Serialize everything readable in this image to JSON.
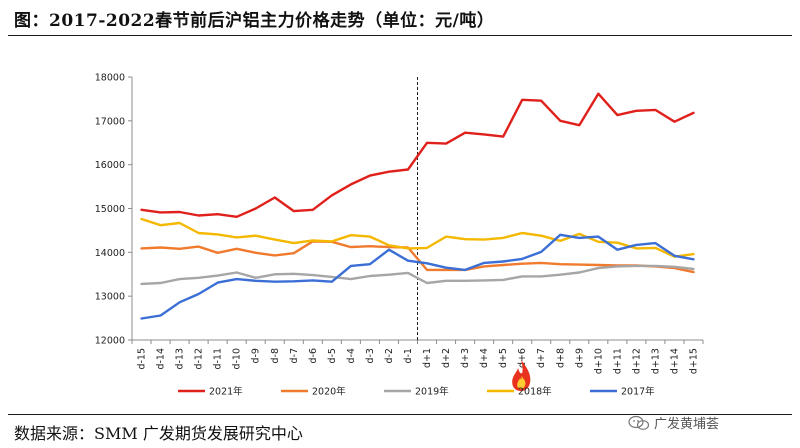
{
  "header": {
    "title": "图：2017-2022春节前后沪铝主力价格走势（单位：元/吨）"
  },
  "footer": {
    "source": "数据来源：SMM 广发期货发展研究中心",
    "watermark": "广发黄埔荟"
  },
  "chart_data": {
    "type": "line",
    "title": "",
    "xlabel": "",
    "ylabel": "",
    "ylim": [
      12000,
      18000
    ],
    "yticks": [
      12000,
      13000,
      14000,
      15000,
      16000,
      17000,
      18000
    ],
    "grid": false,
    "legend_position": "bottom",
    "marker_line_after": "d-1",
    "marker_icon": "flame-icon",
    "marker_icon_at": "d+6",
    "categories": [
      "d-15",
      "d-14",
      "d-13",
      "d-12",
      "d-11",
      "d-10",
      "d-9",
      "d-8",
      "d-7",
      "d-6",
      "d-5",
      "d-4",
      "d-3",
      "d-2",
      "d-1",
      "d+1",
      "d+2",
      "d+3",
      "d+4",
      "d+5",
      "d+6",
      "d+7",
      "d+8",
      "d+9",
      "d+10",
      "d+11",
      "d+12",
      "d+13",
      "d+14",
      "d+15"
    ],
    "series": [
      {
        "name": "2021年",
        "color": "#e0201b",
        "values": [
          14970,
          14910,
          14920,
          14840,
          14870,
          14810,
          15000,
          15250,
          14940,
          14970,
          15300,
          15550,
          15750,
          15840,
          15890,
          16500,
          16480,
          16730,
          16690,
          16640,
          17480,
          17460,
          17000,
          16900,
          17620,
          17130,
          17230,
          17250,
          16980,
          17180
        ]
      },
      {
        "name": "2020年",
        "color": "#f07a2e",
        "values": [
          14090,
          14110,
          14080,
          14130,
          13990,
          14080,
          13990,
          13930,
          13980,
          14250,
          14240,
          14120,
          14140,
          14120,
          14110,
          13600,
          13600,
          13600,
          13680,
          13710,
          13740,
          13760,
          13730,
          13720,
          13710,
          13700,
          13700,
          13680,
          13640,
          13550
        ]
      },
      {
        "name": "2019年",
        "color": "#a6a6a6",
        "values": [
          13280,
          13300,
          13390,
          13420,
          13470,
          13540,
          13420,
          13500,
          13510,
          13480,
          13440,
          13390,
          13460,
          13490,
          13530,
          13300,
          13350,
          13350,
          13360,
          13370,
          13450,
          13450,
          13490,
          13540,
          13640,
          13680,
          13690,
          13690,
          13670,
          13620
        ]
      },
      {
        "name": "2018年",
        "color": "#f4b800",
        "values": [
          14760,
          14620,
          14670,
          14440,
          14410,
          14340,
          14380,
          14290,
          14210,
          14270,
          14250,
          14390,
          14360,
          14160,
          14090,
          14100,
          14360,
          14300,
          14290,
          14330,
          14440,
          14380,
          14260,
          14420,
          14240,
          14220,
          14090,
          14100,
          13900,
          13960
        ]
      },
      {
        "name": "2017年",
        "color": "#3b6fd6",
        "values": [
          12490,
          12560,
          12860,
          13050,
          13310,
          13390,
          13350,
          13330,
          13340,
          13360,
          13330,
          13690,
          13730,
          14060,
          13810,
          13750,
          13650,
          13600,
          13760,
          13790,
          13850,
          14010,
          14400,
          14330,
          14360,
          14060,
          14170,
          14210,
          13920,
          13840
        ]
      }
    ]
  }
}
